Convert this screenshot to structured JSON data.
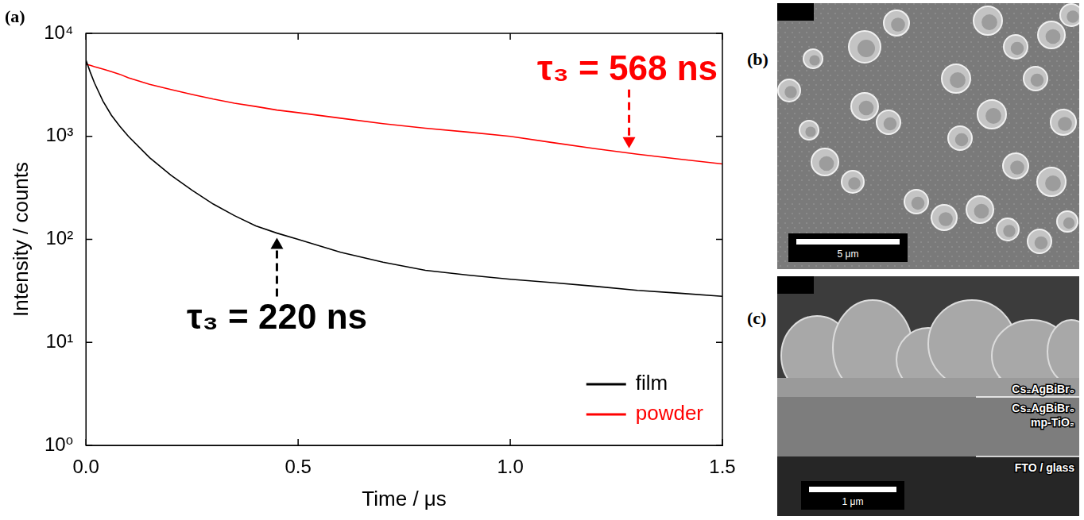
{
  "chart_data": {
    "type": "line",
    "panel_label": "(a)",
    "x_label": "Time / μs",
    "y_label": "Intensity / counts",
    "log": "y",
    "grid": false,
    "legend": "lower right",
    "xlim": [
      0,
      1.5
    ],
    "xticks": [
      {
        "value": 0,
        "label": "0.0"
      },
      0.5,
      {
        "value": 1,
        "label": "1.0"
      },
      1.5
    ],
    "ylim": [
      1,
      10000
    ],
    "yticks": [
      {
        "value": 1,
        "label": "10⁰"
      },
      {
        "value": 10,
        "label": "10¹"
      },
      {
        "value": 100,
        "label": "10²"
      },
      {
        "value": 1000,
        "label": "10³"
      },
      {
        "value": 10000,
        "label": "10⁴"
      }
    ],
    "x": [
      0,
      0.01,
      0.02,
      0.04,
      0.06,
      0.08,
      0.1,
      0.15,
      0.2,
      0.25,
      0.3,
      0.35,
      0.4,
      0.45,
      0.5,
      0.6,
      0.7,
      0.8,
      0.9,
      1.0,
      1.1,
      1.2,
      1.3,
      1.4,
      1.5
    ],
    "series": [
      {
        "name": "film",
        "color": "#000000",
        "values": [
          5500,
          4200,
          3300,
          2200,
          1600,
          1250,
          1000,
          620,
          420,
          300,
          220,
          170,
          135,
          115,
          100,
          75,
          60,
          50,
          45,
          41,
          38,
          35,
          32,
          30,
          28
        ]
      },
      {
        "name": "powder",
        "color": "#ff0000",
        "values": [
          5000,
          4900,
          4750,
          4500,
          4250,
          4000,
          3700,
          3200,
          2850,
          2550,
          2300,
          2100,
          1950,
          1800,
          1700,
          1500,
          1330,
          1200,
          1100,
          1000,
          870,
          760,
          670,
          600,
          540
        ]
      }
    ],
    "annotations": [
      {
        "text": "τ₃ = 568 ns",
        "color": "#ff0000",
        "x": 1.28,
        "y": 690
      },
      {
        "text": "τ₃ = 220 ns",
        "color": "#000000",
        "x": 0.45,
        "y": 115
      }
    ]
  },
  "panels": [
    {
      "label": "(b)",
      "scale_bar": "5 μm"
    },
    {
      "label": "(c)",
      "scale_bar": "1 μm",
      "layers": [
        [
          "Cs₂AgBiBr₆"
        ],
        [
          "Cs₂AgBiBr₆",
          "mp-TiO₂"
        ],
        [
          "FTO / glass"
        ]
      ]
    }
  ]
}
